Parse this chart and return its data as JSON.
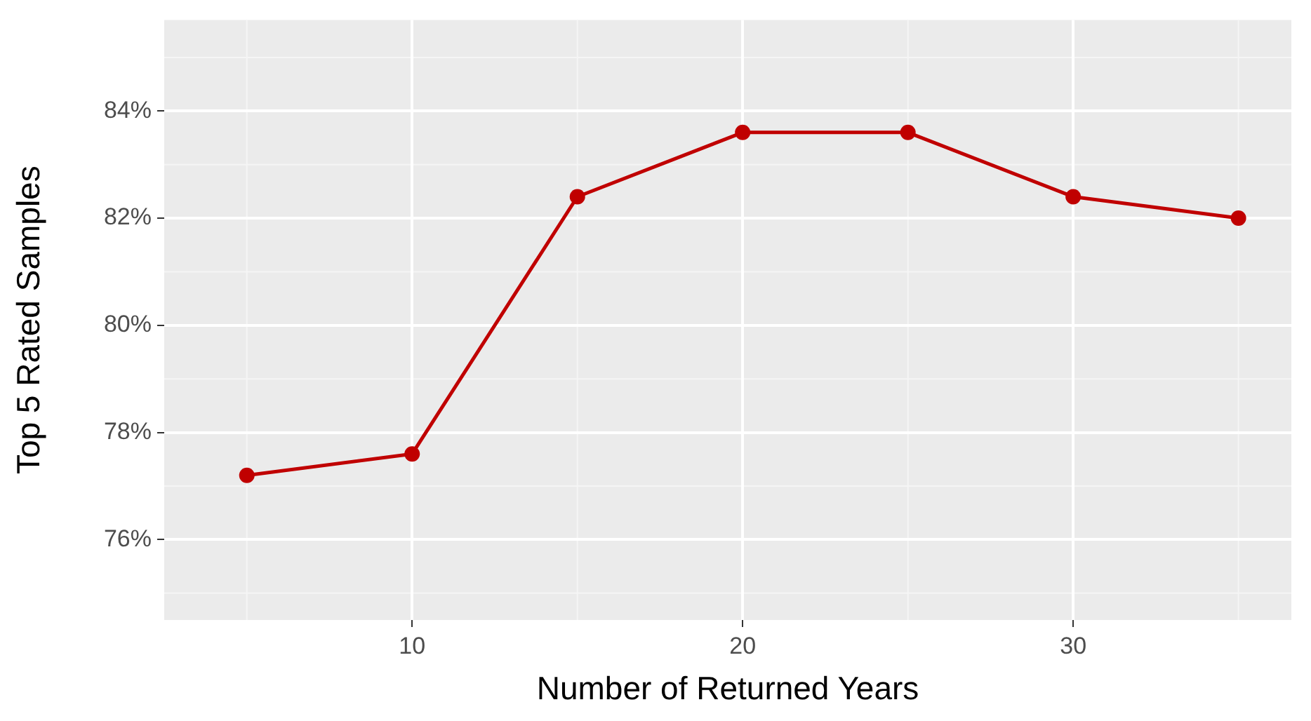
{
  "chart_data": {
    "type": "line",
    "xlabel": "Number of Returned Years",
    "ylabel": "Top 5 Rated Samples",
    "x": [
      5,
      10,
      15,
      20,
      25,
      30,
      35
    ],
    "series": [
      {
        "color": "#c00000",
        "values": [
          77.2,
          77.6,
          82.4,
          83.6,
          83.6,
          82.4,
          82.0
        ]
      }
    ],
    "xlim": [
      2.5,
      36.6
    ],
    "xticks": [
      10,
      20,
      30
    ],
    "ylim": [
      74.5,
      85.7
    ],
    "yticks": [
      {
        "value": 76,
        "label": "76%"
      },
      {
        "value": 78,
        "label": "78%"
      },
      {
        "value": 80,
        "label": "80%"
      },
      {
        "value": 82,
        "label": "82%"
      },
      {
        "value": 84,
        "label": "84%"
      }
    ],
    "grid": true,
    "legend": false,
    "marker": "circle",
    "line_style": "solid"
  }
}
